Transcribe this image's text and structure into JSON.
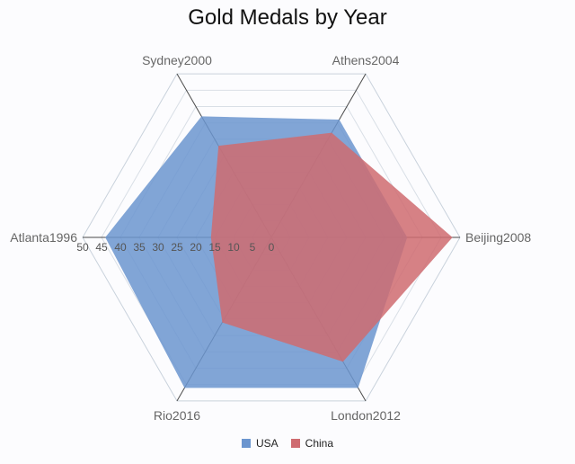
{
  "chart_data": {
    "type": "radar",
    "title": "Gold Medals by Year",
    "categories": [
      "Beijing2008",
      "Athens2004",
      "Sydney2000",
      "Atlanta1996",
      "Rio2016",
      "London2012"
    ],
    "rlim": [
      0,
      50
    ],
    "ticks": [
      "0",
      "5",
      "10",
      "15",
      "20",
      "25",
      "30",
      "35",
      "40",
      "45",
      "50"
    ],
    "grid": true,
    "legend_position": "bottom",
    "series": [
      {
        "name": "USA",
        "color": "#6b95cf",
        "values": [
          36,
          36,
          37,
          44,
          46,
          46
        ]
      },
      {
        "name": "China",
        "color": "#cf6b70",
        "values": [
          48,
          32,
          28,
          16,
          26,
          38
        ]
      }
    ]
  }
}
